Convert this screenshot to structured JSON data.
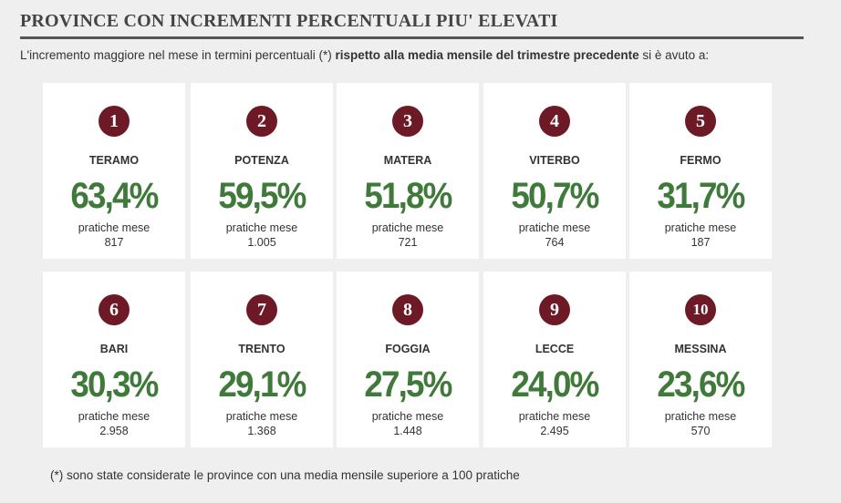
{
  "title": "PROVINCE CON INCREMENTI PERCENTUALI PIU' ELEVATI",
  "intro": {
    "before": "L'incremento maggiore nel mese in termini percentuali (*) ",
    "bold": "rispetto alla media mensile del trimestre precedente",
    "after": " si è avuto a:"
  },
  "practice_label": "pratiche mese",
  "colors": {
    "badge": "#6e1a26",
    "percent": "#3f7a3a",
    "card": "#ffffff",
    "background": "#efefef"
  },
  "cards": [
    {
      "rank": "1",
      "city": "TERAMO",
      "pct": "63,4%",
      "practices": "817"
    },
    {
      "rank": "2",
      "city": "POTENZA",
      "pct": "59,5%",
      "practices": "1.005"
    },
    {
      "rank": "3",
      "city": "MATERA",
      "pct": "51,8%",
      "practices": "721"
    },
    {
      "rank": "4",
      "city": "VITERBO",
      "pct": "50,7%",
      "practices": "764"
    },
    {
      "rank": "5",
      "city": "FERMO",
      "pct": "31,7%",
      "practices": "187"
    },
    {
      "rank": "6",
      "city": "BARI",
      "pct": "30,3%",
      "practices": "2.958"
    },
    {
      "rank": "7",
      "city": "TRENTO",
      "pct": "29,1%",
      "practices": "1.368"
    },
    {
      "rank": "8",
      "city": "FOGGIA",
      "pct": "27,5%",
      "practices": "1.448"
    },
    {
      "rank": "9",
      "city": "LECCE",
      "pct": "24,0%",
      "practices": "2.495"
    },
    {
      "rank": "10",
      "city": "MESSINA",
      "pct": "23,6%",
      "practices": "570"
    }
  ],
  "footnote": "(*) sono state considerate le province con una media mensile  superiore a 100 pratiche"
}
